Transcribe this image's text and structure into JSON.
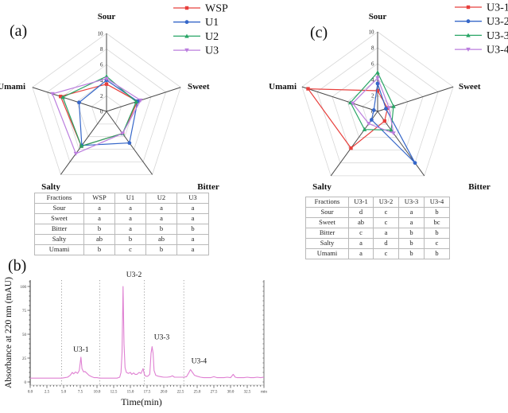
{
  "figure": {
    "panel_a_label": "(a)",
    "panel_b_label": "(b)",
    "panel_c_label": "(c)"
  },
  "chart_data": [
    {
      "id": "radar_a",
      "type": "radar",
      "panel": "a",
      "categories": [
        "Sour",
        "Sweet",
        "Bitter",
        "Salty",
        "Umami"
      ],
      "rmin": 0,
      "rmax": 10,
      "rticks": [
        0,
        2,
        4,
        6,
        8,
        10
      ],
      "grid": "pentagon-rings",
      "legend_position": "top-right",
      "series": [
        {
          "name": "WSP",
          "color": "#e8403d",
          "marker": "square",
          "values": [
            3.5,
            4.2,
            3.5,
            5.5,
            6.2
          ]
        },
        {
          "name": "U1",
          "color": "#3667c9",
          "marker": "circle",
          "values": [
            4.0,
            4.2,
            5.0,
            5.4,
            3.7
          ]
        },
        {
          "name": "U2",
          "color": "#29a566",
          "marker": "triangle-up",
          "values": [
            4.5,
            4.0,
            3.5,
            5.5,
            5.9
          ]
        },
        {
          "name": "U3",
          "color": "#bb7ede",
          "marker": "triangle-down",
          "values": [
            4.2,
            4.6,
            3.5,
            6.7,
            7.3
          ]
        }
      ],
      "table": {
        "header": [
          "Fractions",
          "WSP",
          "U1",
          "U2",
          "U3"
        ],
        "rows": [
          [
            "Sour",
            "a",
            "a",
            "a",
            "a"
          ],
          [
            "Sweet",
            "a",
            "a",
            "a",
            "a"
          ],
          [
            "Bitter",
            "b",
            "a",
            "b",
            "b"
          ],
          [
            "Salty",
            "ab",
            "b",
            "ab",
            "a"
          ],
          [
            "Umami",
            "b",
            "c",
            "b",
            "a"
          ]
        ]
      }
    },
    {
      "id": "radar_c",
      "type": "radar",
      "panel": "c",
      "categories": [
        "Sour",
        "Sweet",
        "Bitter",
        "Salty",
        "Umami"
      ],
      "rmin": 0,
      "rmax": 10,
      "rticks": [
        0,
        2,
        4,
        6,
        8,
        10
      ],
      "grid": "pentagon-rings",
      "legend_position": "top-right",
      "series": [
        {
          "name": "U3-1",
          "color": "#e8403d",
          "marker": "square",
          "values": [
            2.6,
            1.3,
            1.5,
            5.7,
            9.2
          ]
        },
        {
          "name": "U3-2",
          "color": "#3667c9",
          "marker": "circle",
          "values": [
            3.5,
            1.1,
            8.0,
            1.3,
            0.5
          ]
        },
        {
          "name": "U3-3",
          "color": "#29a566",
          "marker": "triangle-up",
          "values": [
            4.9,
            2.1,
            2.9,
            2.8,
            3.6
          ]
        },
        {
          "name": "U3-4",
          "color": "#bb7ede",
          "marker": "triangle-down",
          "values": [
            4.2,
            1.5,
            3.4,
            1.9,
            3.3
          ]
        }
      ],
      "table": {
        "header": [
          "Fractions",
          "U3-1",
          "U3-2",
          "U3-3",
          "U3-4"
        ],
        "rows": [
          [
            "Sour",
            "d",
            "c",
            "a",
            "b"
          ],
          [
            "Sweet",
            "ab",
            "c",
            "a",
            "bc"
          ],
          [
            "Bitter",
            "c",
            "a",
            "b",
            "b"
          ],
          [
            "Salty",
            "a",
            "d",
            "b",
            "c"
          ],
          [
            "Umami",
            "a",
            "c",
            "b",
            "b"
          ]
        ]
      }
    },
    {
      "id": "hplc_b",
      "type": "line",
      "panel": "b",
      "xlabel": "Time(min)",
      "ylabel": "Absorbance at 220 nm (mAU)",
      "xlim": [
        0,
        35
      ],
      "ylim": [
        0,
        105
      ],
      "xtick_labels": [
        "0.0",
        "2.5",
        "5.0",
        "7.5",
        "10.0",
        "12.5",
        "15.0",
        "17.5",
        "20.0",
        "22.5",
        "25.0",
        "27.5",
        "30.0",
        "32.5",
        "min"
      ],
      "xtick_step": 2.5,
      "ytick_values": [
        0,
        25,
        50,
        75,
        100
      ],
      "line_color": "#df80d2",
      "guide_lines_x": [
        4.7,
        10.4,
        17.1,
        23.0
      ],
      "peaks": [
        {
          "label": "U3-1",
          "x": 7.6,
          "y": 26
        },
        {
          "label": "U3-2",
          "x": 13.9,
          "y": 100
        },
        {
          "label": "U3-3",
          "x": 18.3,
          "y": 37
        },
        {
          "label": "U3-4",
          "x": 24.0,
          "y": 13
        }
      ],
      "points": [
        [
          0,
          4
        ],
        [
          1,
          4
        ],
        [
          2,
          4
        ],
        [
          3,
          4
        ],
        [
          4,
          4
        ],
        [
          4.7,
          4
        ],
        [
          5.2,
          4.5
        ],
        [
          5.6,
          5
        ],
        [
          6.0,
          7
        ],
        [
          6.3,
          10
        ],
        [
          6.5,
          8.5
        ],
        [
          6.8,
          10.5
        ],
        [
          7.1,
          9
        ],
        [
          7.35,
          12
        ],
        [
          7.6,
          26
        ],
        [
          7.75,
          14
        ],
        [
          8.0,
          10.5
        ],
        [
          8.2,
          11
        ],
        [
          8.5,
          9
        ],
        [
          8.8,
          7
        ],
        [
          9.2,
          5.5
        ],
        [
          9.6,
          4.5
        ],
        [
          10.0,
          4.5
        ],
        [
          10.4,
          4
        ],
        [
          11,
          4
        ],
        [
          12,
          4
        ],
        [
          13,
          4
        ],
        [
          13.4,
          5
        ],
        [
          13.6,
          10
        ],
        [
          13.75,
          30
        ],
        [
          13.9,
          100
        ],
        [
          14.05,
          40
        ],
        [
          14.2,
          15
        ],
        [
          14.4,
          10
        ],
        [
          14.7,
          9
        ],
        [
          15.0,
          10
        ],
        [
          15.2,
          8
        ],
        [
          15.5,
          9.5
        ],
        [
          15.7,
          8
        ],
        [
          16.0,
          8
        ],
        [
          16.3,
          10
        ],
        [
          16.6,
          9
        ],
        [
          16.9,
          14
        ],
        [
          17.1,
          8
        ],
        [
          17.3,
          6
        ],
        [
          17.6,
          6
        ],
        [
          17.9,
          8
        ],
        [
          18.1,
          30
        ],
        [
          18.25,
          37
        ],
        [
          18.4,
          30
        ],
        [
          18.55,
          12
        ],
        [
          18.8,
          7
        ],
        [
          19.2,
          6
        ],
        [
          19.6,
          5.5
        ],
        [
          20.0,
          5
        ],
        [
          20.5,
          5
        ],
        [
          21.0,
          5.5
        ],
        [
          21.3,
          6.5
        ],
        [
          21.6,
          5
        ],
        [
          22.0,
          5
        ],
        [
          22.5,
          5
        ],
        [
          23.0,
          5
        ],
        [
          23.4,
          5.5
        ],
        [
          23.7,
          9
        ],
        [
          24.0,
          13
        ],
        [
          24.3,
          10
        ],
        [
          24.6,
          7
        ],
        [
          25.0,
          6
        ],
        [
          25.5,
          5
        ],
        [
          26.0,
          4.5
        ],
        [
          26.5,
          4.5
        ],
        [
          27.0,
          4.5
        ],
        [
          27.5,
          5.5
        ],
        [
          28.0,
          4.5
        ],
        [
          28.5,
          4.5
        ],
        [
          29.0,
          4.5
        ],
        [
          29.5,
          5
        ],
        [
          30.0,
          4.5
        ],
        [
          30.4,
          8
        ],
        [
          30.7,
          5
        ],
        [
          31.0,
          4.5
        ],
        [
          31.5,
          4.5
        ],
        [
          32.0,
          4.5
        ],
        [
          32.5,
          5
        ],
        [
          33.0,
          4.5
        ],
        [
          33.5,
          4.5
        ],
        [
          34.0,
          5
        ],
        [
          34.5,
          4.5
        ],
        [
          35.0,
          5
        ]
      ]
    }
  ]
}
